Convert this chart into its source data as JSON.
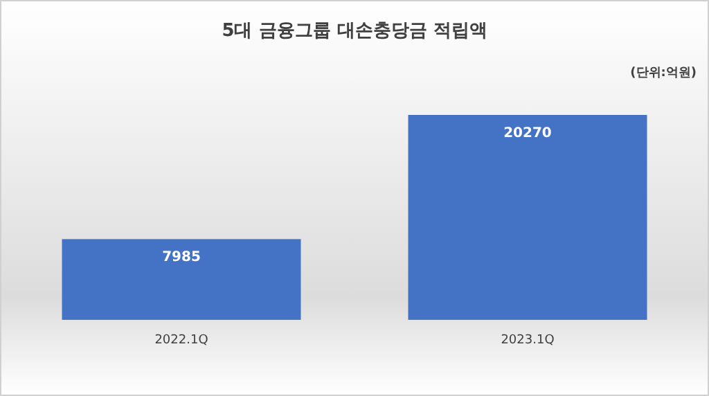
{
  "chart_data": {
    "type": "bar",
    "title": "5대 금융그룹 대손충당금 적립액",
    "annotations": [
      "(단위:억원)"
    ],
    "categories": [
      "2022.1Q",
      "2023.1Q"
    ],
    "values": [
      7985,
      20270
    ],
    "color": "#4472c4",
    "data_labels": true
  }
}
